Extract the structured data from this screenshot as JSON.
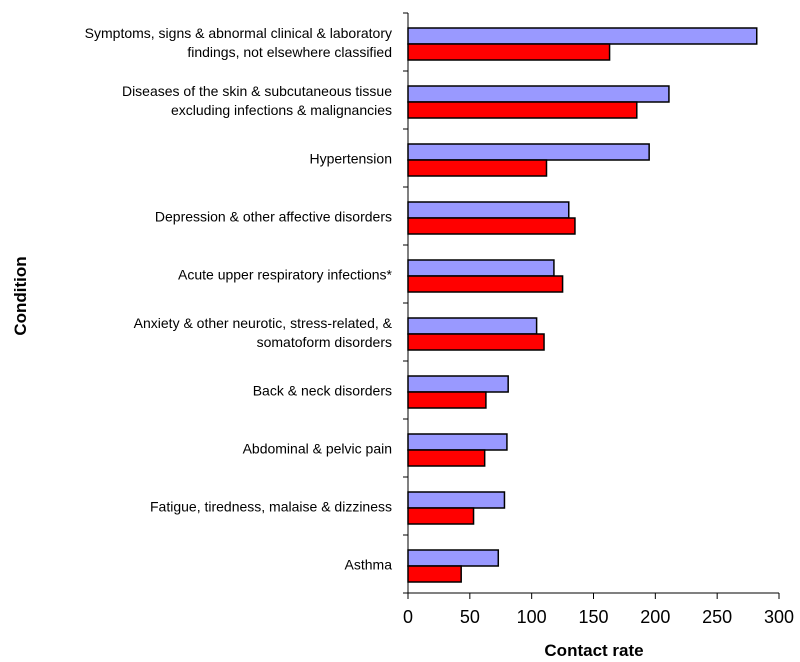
{
  "chart_data": {
    "type": "bar",
    "orientation": "horizontal",
    "title": "",
    "xlabel": "Contact rate",
    "ylabel": "Condition",
    "xlim": [
      0,
      300
    ],
    "xticks": [
      0,
      50,
      100,
      150,
      200,
      250,
      300
    ],
    "grid": false,
    "legend": "none",
    "categories": [
      [
        "Symptoms, signs & abnormal clinical & laboratory",
        "findings, not elsewhere classified"
      ],
      [
        "Diseases of the skin & subcutaneous tissue",
        "excluding infections & malignancies"
      ],
      [
        "Hypertension"
      ],
      [
        "Depression & other affective disorders"
      ],
      [
        "Acute upper respiratory infections*"
      ],
      [
        "Anxiety & other neurotic, stress-related, &",
        "somatoform disorders"
      ],
      [
        "Back & neck disorders"
      ],
      [
        "Abdominal & pelvic pain"
      ],
      [
        "Fatigue, tiredness, malaise & dizziness"
      ],
      [
        "Asthma"
      ]
    ],
    "series": [
      {
        "color": "#9999FF",
        "values": [
          282,
          211,
          195,
          130,
          118,
          104,
          81,
          80,
          78,
          73
        ]
      },
      {
        "color": "#FF0000",
        "values": [
          163,
          185,
          112,
          135,
          125,
          110,
          63,
          62,
          53,
          43
        ]
      }
    ]
  }
}
